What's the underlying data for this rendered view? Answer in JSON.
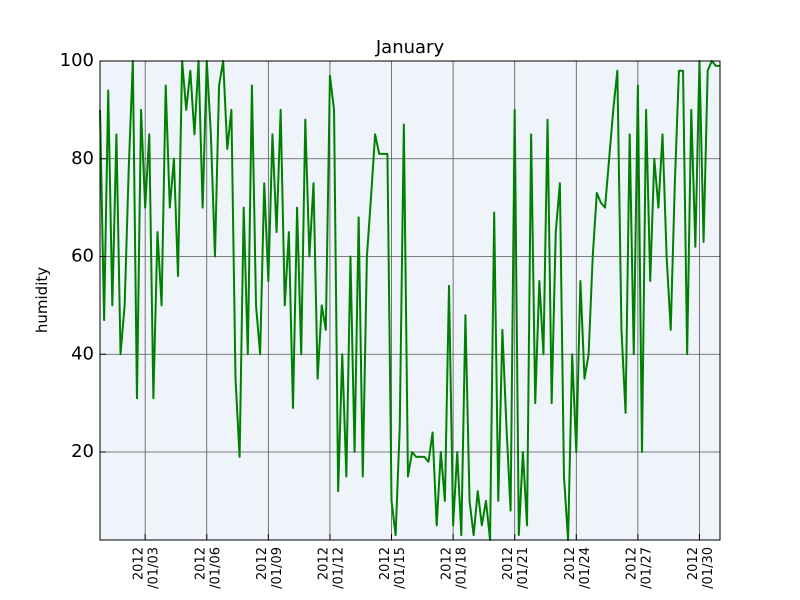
{
  "chart_data": {
    "type": "line",
    "title": "January",
    "ylabel": "humidity",
    "xlim": [
      0.8,
      31.0
    ],
    "ylim": [
      2,
      100
    ],
    "xticks": [
      {
        "value": 3,
        "label": "2012\n/01/03"
      },
      {
        "value": 6,
        "label": "2012\n/01/06"
      },
      {
        "value": 9,
        "label": "2012\n/01/09"
      },
      {
        "value": 12,
        "label": "2012\n/01/12"
      },
      {
        "value": 15,
        "label": "2012\n/01/15"
      },
      {
        "value": 18,
        "label": "2012\n/01/18"
      },
      {
        "value": 21,
        "label": "2012\n/01/21"
      },
      {
        "value": 24,
        "label": "2012\n/01/24"
      },
      {
        "value": 27,
        "label": "2012\n/01/27"
      },
      {
        "value": 30,
        "label": "2012\n/01/30"
      }
    ],
    "yticks": [
      20,
      40,
      60,
      80,
      100
    ],
    "grid": true,
    "series": [
      {
        "name": "humidity",
        "color": "#008000",
        "x": [
          0.8,
          1.0,
          1.2,
          1.4,
          1.6,
          1.8,
          2.0,
          2.2,
          2.4,
          2.6,
          2.8,
          3.0,
          3.2,
          3.4,
          3.6,
          3.8,
          4.0,
          4.2,
          4.4,
          4.6,
          4.8,
          5.0,
          5.2,
          5.4,
          5.6,
          5.8,
          6.0,
          6.2,
          6.4,
          6.6,
          6.8,
          7.0,
          7.2,
          7.4,
          7.6,
          7.8,
          8.0,
          8.2,
          8.4,
          8.6,
          8.8,
          9.0,
          9.2,
          9.4,
          9.6,
          9.8,
          10.0,
          10.2,
          10.4,
          10.6,
          10.8,
          11.0,
          11.2,
          11.4,
          11.6,
          11.8,
          12.0,
          12.2,
          12.4,
          12.6,
          12.8,
          13.0,
          13.2,
          13.4,
          13.6,
          13.8,
          14.0,
          14.2,
          14.4,
          14.6,
          14.8,
          15.0,
          15.2,
          15.4,
          15.6,
          15.8,
          16.0,
          16.2,
          16.4,
          16.6,
          16.8,
          17.0,
          17.2,
          17.4,
          17.6,
          17.8,
          18.0,
          18.2,
          18.4,
          18.6,
          18.8,
          19.0,
          19.2,
          19.4,
          19.6,
          19.8,
          20.0,
          20.2,
          20.4,
          20.6,
          20.8,
          21.0,
          21.2,
          21.4,
          21.6,
          21.8,
          22.0,
          22.2,
          22.4,
          22.6,
          22.8,
          23.0,
          23.2,
          23.4,
          23.6,
          23.8,
          24.0,
          24.2,
          24.4,
          24.6,
          24.8,
          25.0,
          25.2,
          25.4,
          25.6,
          25.8,
          26.0,
          26.2,
          26.4,
          26.6,
          26.8,
          27.0,
          27.2,
          27.4,
          27.6,
          27.8,
          28.0,
          28.2,
          28.4,
          28.6,
          28.8,
          29.0,
          29.2,
          29.4,
          29.6,
          29.8,
          30.0,
          30.2,
          30.4,
          30.6,
          30.8,
          31.0
        ],
        "values": [
          90,
          47,
          94,
          50,
          85,
          40,
          50,
          78,
          100,
          31,
          90,
          70,
          85,
          31,
          65,
          50,
          95,
          70,
          80,
          56,
          100,
          90,
          98,
          85,
          100,
          70,
          100,
          85,
          60,
          95,
          100,
          82,
          90,
          35,
          19,
          70,
          40,
          95,
          50,
          40,
          75,
          55,
          85,
          65,
          90,
          50,
          65,
          29,
          70,
          40,
          88,
          60,
          75,
          35,
          50,
          45,
          97,
          90,
          12,
          40,
          15,
          60,
          20,
          68,
          15,
          60,
          72,
          85,
          81,
          81,
          81,
          10,
          3,
          25,
          87,
          15,
          20,
          19,
          19,
          19,
          18,
          24,
          5,
          20,
          10,
          54,
          5,
          20,
          3,
          48,
          10,
          3,
          12,
          5,
          10,
          2,
          69,
          10,
          45,
          25,
          8,
          90,
          3,
          20,
          5,
          85,
          30,
          55,
          40,
          88,
          30,
          65,
          75,
          15,
          2,
          40,
          20,
          55,
          35,
          40,
          60,
          73,
          71,
          70,
          80,
          90,
          98,
          45,
          28,
          85,
          40,
          95,
          20,
          90,
          55,
          80,
          70,
          85,
          60,
          45,
          75,
          98,
          98,
          40,
          90,
          62,
          100,
          63,
          98,
          100,
          99,
          99
        ]
      }
    ]
  }
}
